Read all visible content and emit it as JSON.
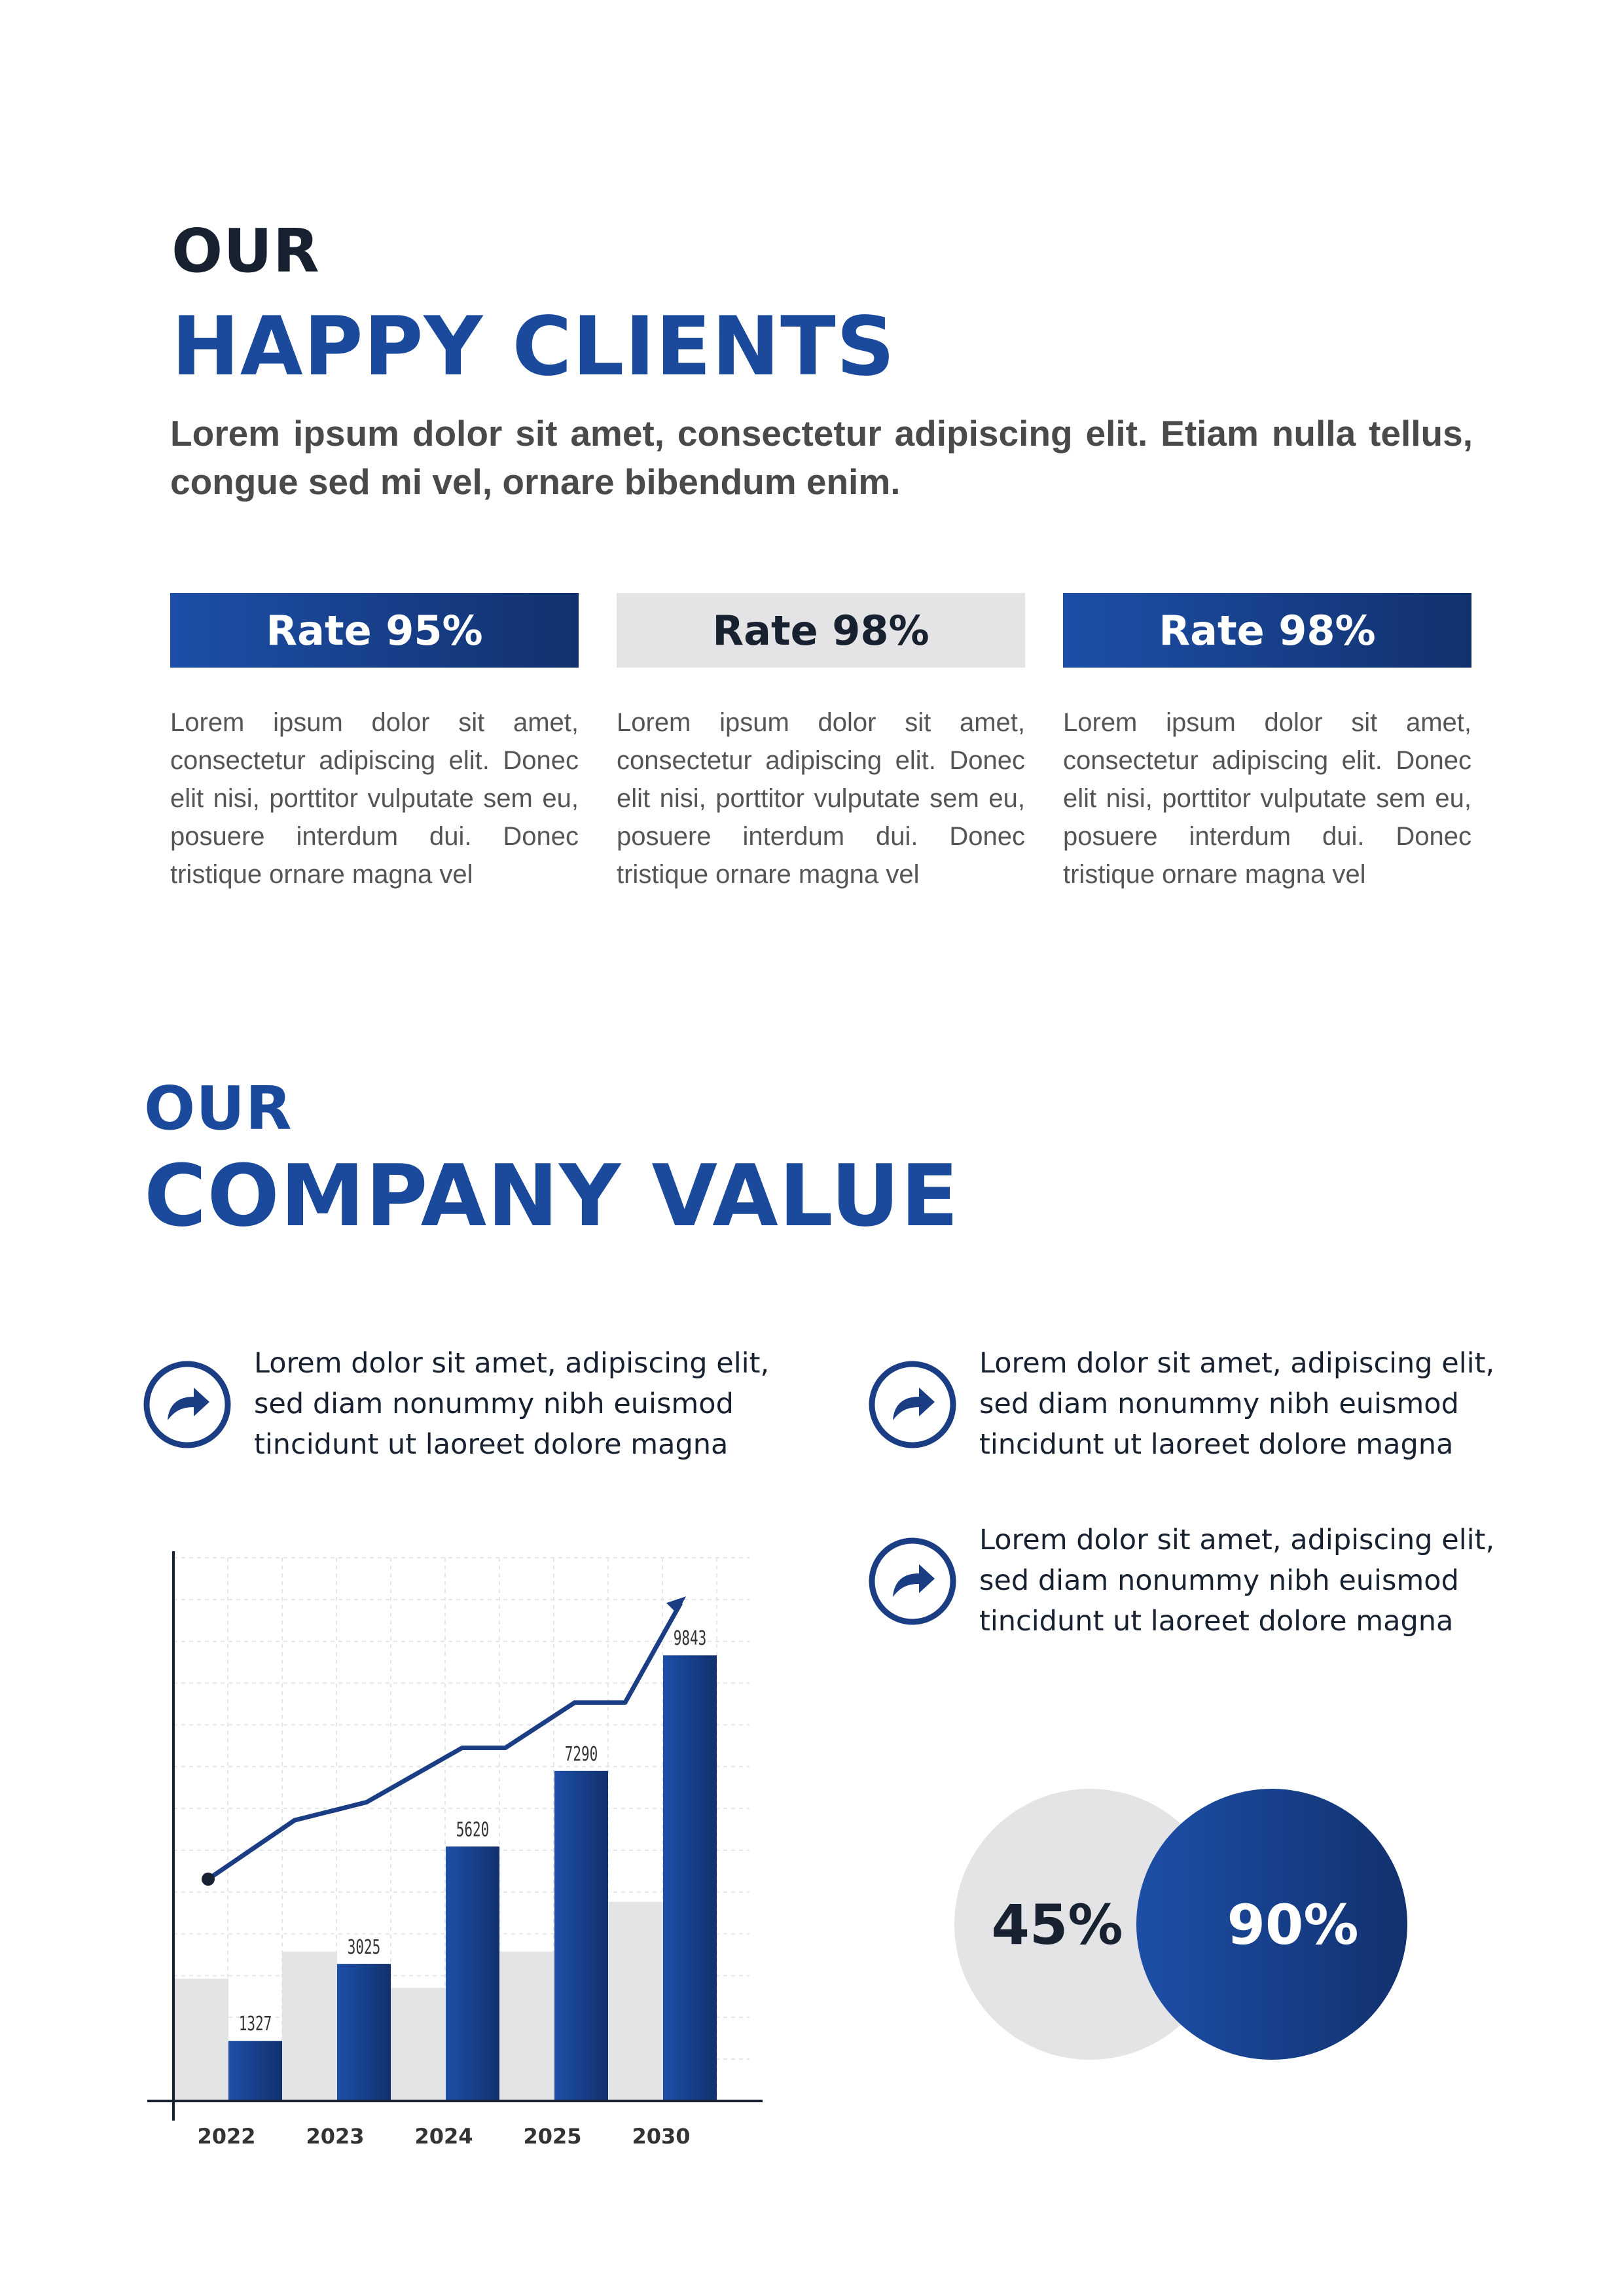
{
  "clients": {
    "heading_small": "OUR",
    "heading_big": "HAPPY CLIENTS",
    "intro": "Lorem ipsum dolor sit amet, consectetur adipiscing elit. Etiam nulla tellus, congue sed mi vel, ornare bibendum enim.",
    "rates": [
      {
        "label": "Rate 95%",
        "text": "Lorem ipsum dolor sit amet, consectetur adipiscing elit. Donec elit nisi, porttitor vulputate sem eu, posuere interdum dui. Donec tristique ornare magna vel"
      },
      {
        "label": "Rate 98%",
        "text": "Lorem ipsum dolor sit amet, consectetur adipiscing elit. Donec elit nisi, porttitor vulputate sem eu, posuere interdum dui. Donec tristique ornare magna vel"
      },
      {
        "label": "Rate 98%",
        "text": "Lorem ipsum dolor sit amet, consectetur adipiscing elit. Donec elit nisi, porttitor vulputate sem eu, posuere interdum dui. Donec tristique ornare magna vel"
      }
    ]
  },
  "company": {
    "heading_small": "OUR",
    "heading_big": "COMPANY VALUE",
    "bullets": [
      {
        "icon": "share-arrow-icon",
        "text": "Lorem dolor sit amet, adipiscing elit, sed diam nonummy nibh euismod tincidunt ut laoreet dolore magna"
      },
      {
        "icon": "share-arrow-icon",
        "text": "Lorem dolor sit amet, adipiscing elit, sed diam nonummy nibh euismod tincidunt ut laoreet dolore magna"
      },
      {
        "icon": "share-arrow-icon",
        "text": "Lorem dolor sit amet, adipiscing elit, sed diam nonummy nibh euismod tincidunt ut laoreet dolore magna"
      }
    ],
    "percent_grey": "45%",
    "percent_blue": "90%"
  },
  "colors": {
    "brand_blue": "#1b4a9c",
    "dark_navy": "#12316e",
    "heading_dark": "#17212f",
    "light_grey": "#e4e4e6"
  },
  "chart_data": {
    "type": "bar",
    "categories": [
      "2022",
      "2023",
      "2024",
      "2025",
      "2030"
    ],
    "values": [
      1327,
      3025,
      5620,
      7290,
      9843
    ],
    "value_labels": [
      "1327",
      "3025",
      "5620",
      "7290",
      "9843"
    ],
    "background_bars": [
      2700,
      3300,
      2500,
      3300,
      4400
    ],
    "trend_line": [
      4900,
      6200,
      6600,
      8400,
      9800
    ],
    "ylim": [
      0,
      12000
    ],
    "grid": true
  }
}
